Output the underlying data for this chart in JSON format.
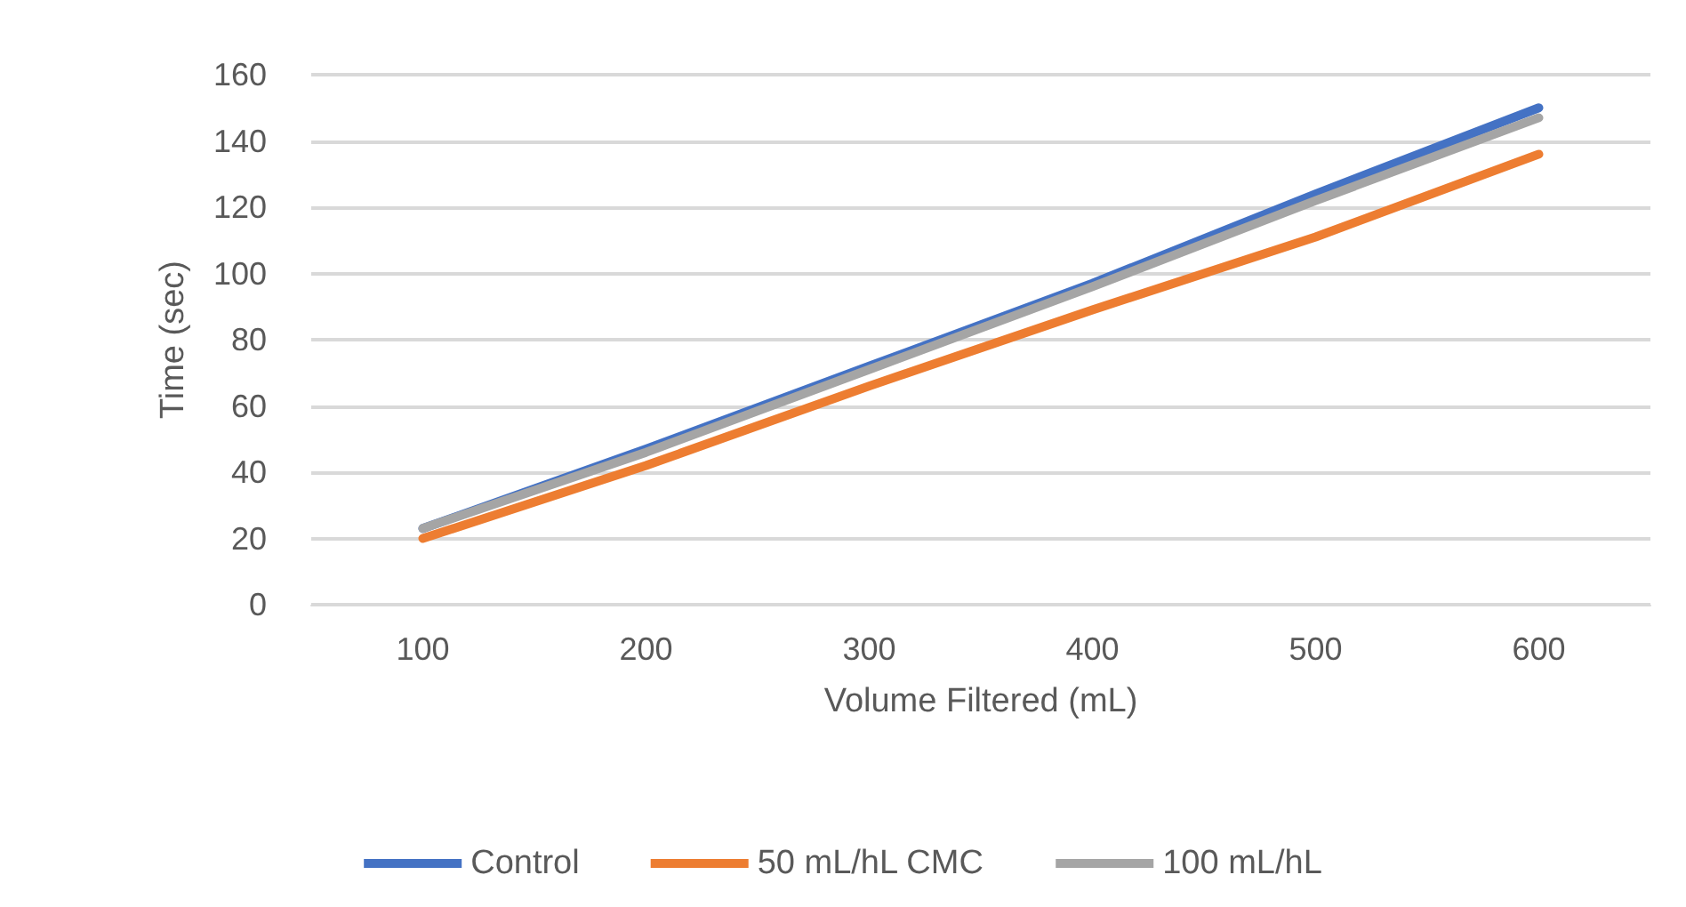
{
  "chart_data": {
    "type": "line",
    "xlabel": "Volume Filtered (mL)",
    "ylabel": "Time (sec)",
    "categories": [
      "100",
      "200",
      "300",
      "400",
      "500",
      "600"
    ],
    "series": [
      {
        "name": "Control",
        "color": "#4472c4",
        "values": [
          23,
          47,
          72,
          97,
          124,
          150
        ]
      },
      {
        "name": "50 mL/hL CMC",
        "color": "#ed7d31",
        "values": [
          20,
          42,
          66,
          89,
          111,
          136
        ]
      },
      {
        "name": "100 mL/hL",
        "color": "#a5a5a5",
        "values": [
          23,
          46,
          71,
          96,
          122,
          147
        ]
      }
    ],
    "ylim": [
      0,
      160
    ],
    "yticks": [
      0,
      20,
      40,
      60,
      80,
      100,
      120,
      140,
      160
    ],
    "grid": "y",
    "legend": "bottom",
    "marker": "none",
    "line_style": "solid"
  }
}
